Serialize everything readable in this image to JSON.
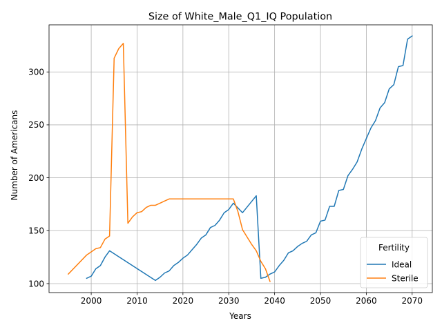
{
  "chart_data": {
    "type": "line",
    "title": "Size of White_Male_Q1_IQ Population",
    "xlabel": "Years",
    "ylabel": "Number of Americans",
    "xlim": [
      1990.8,
      2074.4
    ],
    "ylim": [
      91.5,
      344.5
    ],
    "xticks": [
      2000,
      2010,
      2020,
      2030,
      2040,
      2050,
      2060,
      2070
    ],
    "yticks": [
      100,
      150,
      200,
      250,
      300
    ],
    "grid": true,
    "legend": {
      "title": "Fertility",
      "placement": "lower right"
    },
    "series": [
      {
        "name": "Ideal",
        "color": "#1f77b4",
        "x": [
          1999,
          2000,
          2001,
          2002,
          2003,
          2004,
          2014,
          2015,
          2016,
          2017,
          2018,
          2019,
          2020,
          2021,
          2022,
          2023,
          2024,
          2025,
          2026,
          2027,
          2028,
          2029,
          2030,
          2031,
          2033,
          2036,
          2037,
          2038,
          2039,
          2040,
          2041,
          2042,
          2043,
          2044,
          2045,
          2046,
          2047,
          2048,
          2049,
          2050,
          2051,
          2052,
          2053,
          2054,
          2055,
          2056,
          2057,
          2058,
          2059,
          2060,
          2061,
          2062,
          2063,
          2064,
          2065,
          2066,
          2067,
          2068,
          2069,
          2070
        ],
        "y": [
          105,
          107,
          114,
          117,
          125,
          131,
          103,
          106,
          110,
          112,
          117,
          120,
          124,
          127,
          132,
          137,
          143,
          146,
          153,
          155,
          160,
          167,
          170,
          176,
          167,
          183,
          105,
          106,
          109,
          111,
          117,
          122,
          129,
          131,
          135,
          138,
          140,
          146,
          148,
          159,
          160,
          173,
          173,
          188,
          189,
          202,
          208,
          215,
          227,
          237,
          247,
          254,
          266,
          271,
          284,
          288,
          305,
          306,
          331,
          334
        ]
      },
      {
        "name": "Sterile",
        "color": "#ff7f0e",
        "x": [
          1995,
          1999,
          2000,
          2001,
          2002,
          2003,
          2004,
          2005,
          2006,
          2007,
          2008,
          2009,
          2010,
          2011,
          2012,
          2013,
          2014,
          2015,
          2016,
          2017,
          2018,
          2019,
          2020,
          2021,
          2022,
          2023,
          2024,
          2025,
          2026,
          2027,
          2028,
          2029,
          2030,
          2031,
          2032,
          2033,
          2034,
          2035,
          2036,
          2037,
          2038,
          2039
        ],
        "y": [
          109,
          127,
          130,
          133,
          134,
          142,
          145,
          313,
          322,
          327,
          157,
          163,
          167,
          168,
          172,
          174,
          174,
          176,
          178,
          180,
          180,
          180,
          180,
          180,
          180,
          180,
          180,
          180,
          180,
          180,
          180,
          180,
          180,
          180,
          168,
          151,
          144,
          137,
          131,
          121,
          114,
          102
        ]
      }
    ]
  }
}
